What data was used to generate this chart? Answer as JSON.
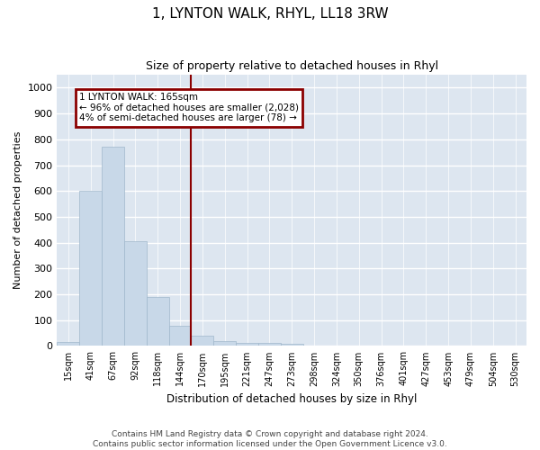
{
  "title": "1, LYNTON WALK, RHYL, LL18 3RW",
  "subtitle": "Size of property relative to detached houses in Rhyl",
  "xlabel": "Distribution of detached houses by size in Rhyl",
  "ylabel": "Number of detached properties",
  "categories": [
    "15sqm",
    "41sqm",
    "67sqm",
    "92sqm",
    "118sqm",
    "144sqm",
    "170sqm",
    "195sqm",
    "221sqm",
    "247sqm",
    "273sqm",
    "298sqm",
    "324sqm",
    "350sqm",
    "376sqm",
    "401sqm",
    "427sqm",
    "453sqm",
    "479sqm",
    "504sqm",
    "530sqm"
  ],
  "values": [
    15,
    600,
    770,
    405,
    190,
    78,
    40,
    18,
    13,
    13,
    9,
    0,
    0,
    0,
    0,
    0,
    0,
    0,
    0,
    0,
    0
  ],
  "bar_color": "#c8d8e8",
  "bar_edge_color": "#a0b8cc",
  "vline_pos": 5.5,
  "vline_color": "#8b0000",
  "annotation_box_color": "#8b0000",
  "annotation_title": "1 LYNTON WALK: 165sqm",
  "annotation_line1": "← 96% of detached houses are smaller (2,028)",
  "annotation_line2": "4% of semi-detached houses are larger (78) →",
  "ylim": [
    0,
    1050
  ],
  "yticks": [
    0,
    100,
    200,
    300,
    400,
    500,
    600,
    700,
    800,
    900,
    1000
  ],
  "footer1": "Contains HM Land Registry data © Crown copyright and database right 2024.",
  "footer2": "Contains public sector information licensed under the Open Government Licence v3.0.",
  "background_color": "#dde6f0"
}
